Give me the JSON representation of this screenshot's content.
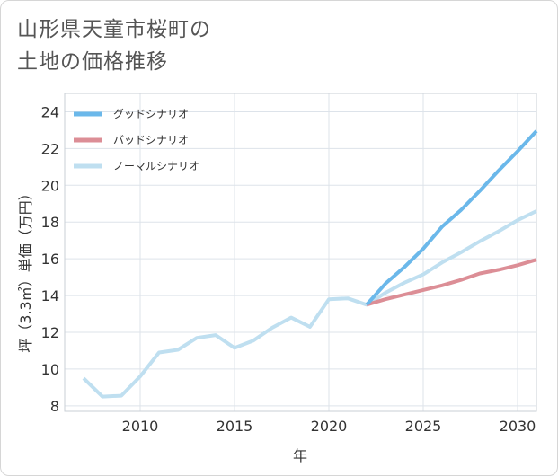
{
  "chart_data": {
    "type": "line",
    "title": [
      "山形県天童市桜町の",
      "土地の価格推移"
    ],
    "xlabel": "年",
    "ylabel": "坪（3.3㎡）単価（万円）",
    "xlim": [
      2006,
      2031
    ],
    "ylim": [
      7.7,
      25
    ],
    "x_ticks": [
      2010,
      2015,
      2020,
      2025,
      2030
    ],
    "y_ticks": [
      8,
      10,
      12,
      14,
      16,
      18,
      20,
      22,
      24
    ],
    "grid": true,
    "legend_position": "top-left",
    "series": [
      {
        "name": "グッドシナリオ",
        "color": "#6bb8ea",
        "x": [
          2022,
          2023,
          2024,
          2025,
          2026,
          2027,
          2028,
          2029,
          2030,
          2031
        ],
        "values": [
          13.5,
          14.65,
          15.55,
          16.55,
          17.75,
          18.65,
          19.7,
          20.8,
          21.85,
          22.95
        ]
      },
      {
        "name": "バッドシナリオ",
        "color": "#dc8e96",
        "x": [
          2022,
          2023,
          2024,
          2025,
          2026,
          2027,
          2028,
          2029,
          2030,
          2031
        ],
        "values": [
          13.5,
          13.8,
          14.05,
          14.3,
          14.55,
          14.85,
          15.2,
          15.4,
          15.65,
          15.95
        ]
      },
      {
        "name": "ノーマルシナリオ",
        "color": "#bfdff0",
        "x": [
          2007,
          2008,
          2009,
          2010,
          2011,
          2012,
          2013,
          2014,
          2015,
          2016,
          2017,
          2018,
          2019,
          2020,
          2021,
          2022,
          2023,
          2024,
          2025,
          2026,
          2027,
          2028,
          2029,
          2030,
          2031
        ],
        "values": [
          9.5,
          8.5,
          8.55,
          9.6,
          10.9,
          11.05,
          11.7,
          11.85,
          11.15,
          11.55,
          12.25,
          12.8,
          12.3,
          13.8,
          13.85,
          13.5,
          14.15,
          14.7,
          15.15,
          15.8,
          16.35,
          16.95,
          17.5,
          18.1,
          18.6
        ]
      }
    ]
  }
}
